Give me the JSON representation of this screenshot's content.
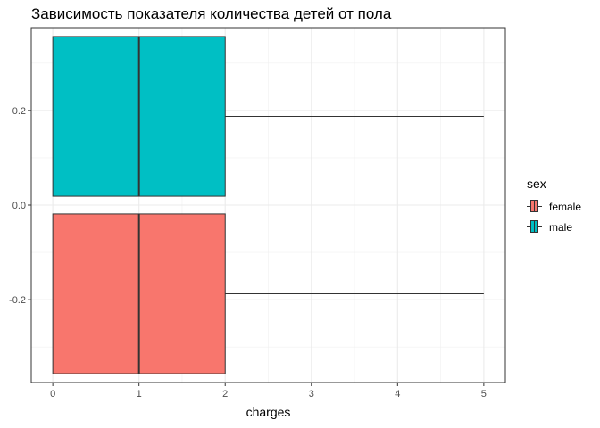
{
  "chart_data": {
    "type": "boxplot",
    "orientation": "horizontal",
    "title": "Зависимость показателя количества детей от пола",
    "xlabel": "charges",
    "ylabel": "",
    "xlim": [
      -0.25,
      5.25
    ],
    "ylim": [
      -0.375,
      0.375
    ],
    "x_ticks": [
      0,
      1,
      2,
      3,
      4,
      5
    ],
    "y_ticks": [
      -0.2,
      0.0,
      0.2
    ],
    "x_tick_labels": [
      "0",
      "1",
      "2",
      "3",
      "4",
      "5"
    ],
    "y_tick_labels": [
      "-0.2",
      "0.0",
      "0.2"
    ],
    "grid": true,
    "legend_position": "right",
    "legend_title": "sex",
    "series": [
      {
        "name": "female",
        "color": "#F8766D",
        "position": -0.1875,
        "min": 0,
        "q1": 0,
        "median": 1,
        "q3": 2,
        "max": 5
      },
      {
        "name": "male",
        "color": "#00BFC4",
        "position": 0.1875,
        "min": 0,
        "q1": 0,
        "median": 1,
        "q3": 2,
        "max": 5
      }
    ]
  }
}
